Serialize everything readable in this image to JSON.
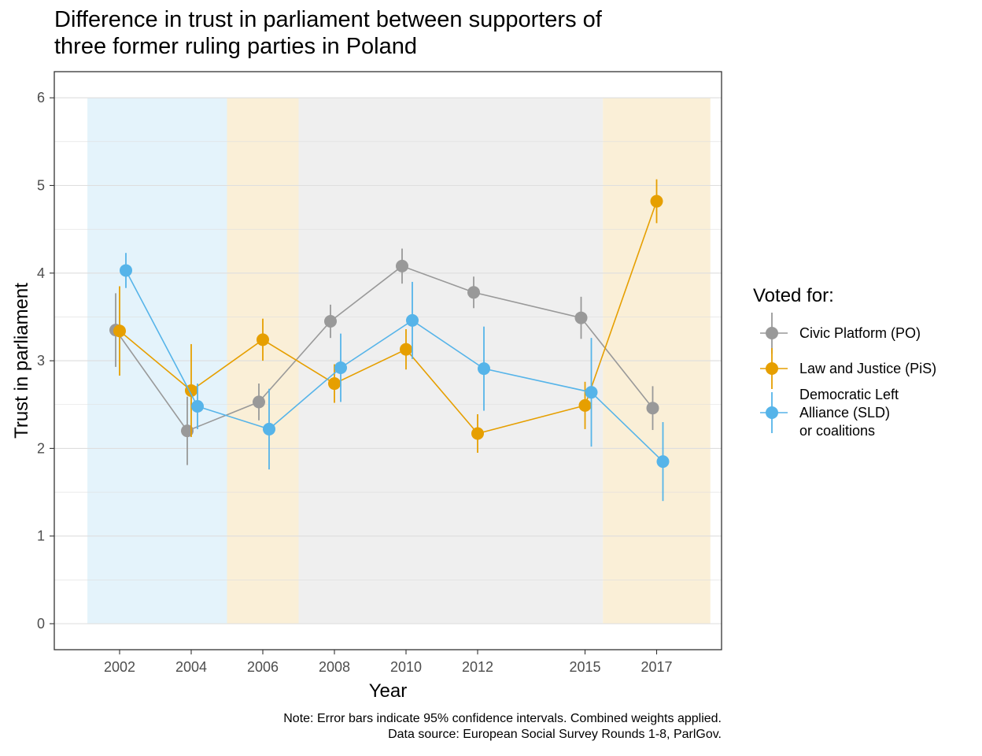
{
  "title_lines": [
    "Difference in trust in parliament between supporters of",
    "three former ruling parties in Poland"
  ],
  "caption_lines": [
    "Note: Error bars indicate 95% confidence intervals. Combined weights applied.",
    "Data source: European Social Survey Rounds 1-8, ParlGov."
  ],
  "colors": {
    "po": "#999999",
    "pis": "#E69F00",
    "sld": "#56B4E9",
    "band_sld": "#E4F3FB",
    "band_pis": "#FAEFD7",
    "band_po": "#EFEFEF",
    "grid": "#DEDEDE"
  },
  "chart_data": {
    "type": "line",
    "xlabel": "Year",
    "ylabel": "Trust in parliament",
    "ylim": [
      0,
      6
    ],
    "yticks": [
      "0",
      "1",
      "2",
      "3",
      "4",
      "5",
      "6"
    ],
    "x": [
      "2002",
      "2004",
      "2006",
      "2008",
      "2010",
      "2012",
      "2015",
      "2017"
    ],
    "grid": true,
    "legend": {
      "title": "Voted for:",
      "position": "right",
      "entries": [
        {
          "key": "po",
          "lines": [
            "Civic Platform (PO)"
          ]
        },
        {
          "key": "pis",
          "lines": [
            "Law and Justice (PiS)"
          ]
        },
        {
          "key": "sld",
          "lines": [
            "Democratic Left",
            "Alliance (SLD)",
            "or coalitions"
          ]
        }
      ]
    },
    "governing_periods": [
      {
        "party": "sld",
        "from": 2001.1,
        "to": 2005.0
      },
      {
        "party": "pis",
        "from": 2005.0,
        "to": 2007.0
      },
      {
        "party": "po",
        "from": 2007.0,
        "to": 2015.5
      },
      {
        "party": "pis",
        "from": 2015.5,
        "to": 2018.5
      }
    ],
    "series": [
      {
        "key": "po",
        "name": "Civic Platform (PO)",
        "values": [
          3.35,
          2.2,
          2.53,
          3.45,
          4.08,
          3.78,
          3.49,
          2.46
        ],
        "lower": [
          2.93,
          1.81,
          2.32,
          3.26,
          3.88,
          3.6,
          3.25,
          2.21
        ],
        "upper": [
          3.77,
          2.59,
          2.74,
          3.64,
          4.28,
          3.96,
          3.73,
          2.71
        ]
      },
      {
        "key": "pis",
        "name": "Law and Justice (PiS)",
        "values": [
          3.34,
          2.66,
          3.24,
          2.74,
          3.13,
          2.17,
          2.49,
          4.82
        ],
        "lower": [
          2.83,
          2.13,
          3.0,
          2.52,
          2.9,
          1.95,
          2.22,
          4.57
        ],
        "upper": [
          3.85,
          3.19,
          3.48,
          2.96,
          3.36,
          2.39,
          2.76,
          5.07
        ]
      },
      {
        "key": "sld",
        "name": "Democratic Left Alliance (SLD) or coalitions",
        "values": [
          4.03,
          2.48,
          2.22,
          2.92,
          3.46,
          2.91,
          2.64,
          1.85
        ],
        "lower": [
          3.83,
          2.22,
          1.76,
          2.53,
          3.02,
          2.43,
          2.02,
          1.4
        ],
        "upper": [
          4.23,
          2.74,
          2.68,
          3.31,
          3.9,
          3.39,
          3.26,
          2.3
        ]
      }
    ]
  }
}
